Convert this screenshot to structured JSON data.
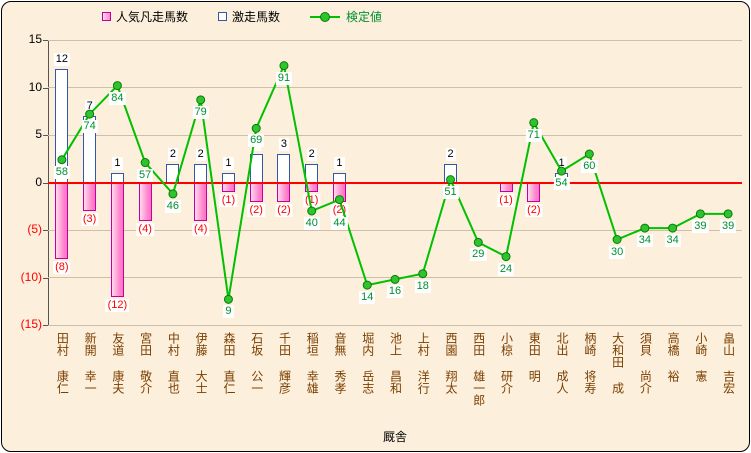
{
  "legend": {
    "flop": "人気凡走馬数",
    "surge": "激走馬数",
    "line": "検定値"
  },
  "axis": {
    "x_title": "厩舎",
    "yticks": [
      "15",
      "10",
      "5",
      "0",
      "(5)",
      "(10)",
      "(15)"
    ]
  },
  "colors": {
    "background": "#FCEFDC",
    "flop_fill": "#FF9BD4",
    "flop_border": "#C000A0",
    "surge_fill": "#FFFFFF",
    "surge_border": "#3355AA",
    "line": "#00C000",
    "zero_line": "#FF0000",
    "negative_label": "#FF0000",
    "line_label": "#009030",
    "category_label": "#7B3F00"
  },
  "chart_data": {
    "type": "bar",
    "subtype": "combo bar + line",
    "xlabel": "厩舎",
    "ylim": [
      -15,
      15
    ],
    "grid": true,
    "legend_position": "top",
    "categories": [
      "田村 康仁",
      "新開 幸一",
      "友道 康夫",
      "宮田 敬介",
      "中村 直也",
      "伊藤 大士",
      "森田 直仁",
      "石坂 公一",
      "千田 輝彦",
      "稲垣 幸雄",
      "音無 秀孝",
      "堀内 岳志",
      "池上 昌和",
      "上村 洋行",
      "西園 翔太",
      "西田 雄一郎",
      "小椋 研介",
      "東田 明",
      "北出 成人",
      "柄崎 将寿",
      "大和田 成",
      "須貝 尚介",
      "高橋 裕",
      "小崎 憲",
      "畠山 吉宏"
    ],
    "series": [
      {
        "name": "人気凡走馬数",
        "chart": "bar",
        "values": [
          -8,
          -3,
          -12,
          -4,
          0,
          -4,
          -1,
          -2,
          -2,
          -1,
          -2,
          0,
          0,
          0,
          0,
          0,
          -1,
          -2,
          0,
          0,
          0,
          0,
          0,
          0,
          0
        ],
        "labels": [
          "(8)",
          "(3)",
          "(12)",
          "(4)",
          "",
          "(4)",
          "(1)",
          "(2)",
          "(2)",
          "(1)",
          "(2)",
          "",
          "",
          "",
          "",
          "",
          "(1)",
          "(2)",
          "",
          "",
          "",
          "",
          "",
          "",
          ""
        ]
      },
      {
        "name": "激走馬数",
        "chart": "bar",
        "values": [
          12,
          7,
          1,
          0,
          2,
          2,
          1,
          3,
          3,
          2,
          1,
          0,
          0,
          0,
          2,
          0,
          0,
          0,
          1,
          0,
          0,
          0,
          0,
          0,
          0
        ],
        "labels": [
          "12",
          "7",
          "1",
          "",
          "2",
          "2",
          "1",
          "3",
          "3",
          "2",
          "1",
          "",
          "",
          "",
          "2",
          "",
          "",
          "",
          "1",
          "",
          "",
          "",
          "",
          "",
          ""
        ]
      },
      {
        "name": "検定値",
        "chart": "line",
        "values": [
          58,
          74,
          84,
          57,
          46,
          79,
          9,
          69,
          91,
          40,
          44,
          14,
          16,
          18,
          51,
          29,
          24,
          71,
          54,
          60,
          30,
          34,
          34,
          39,
          39
        ],
        "plotted_scale": "0-100 mapped onto -15..15 axis"
      }
    ]
  }
}
